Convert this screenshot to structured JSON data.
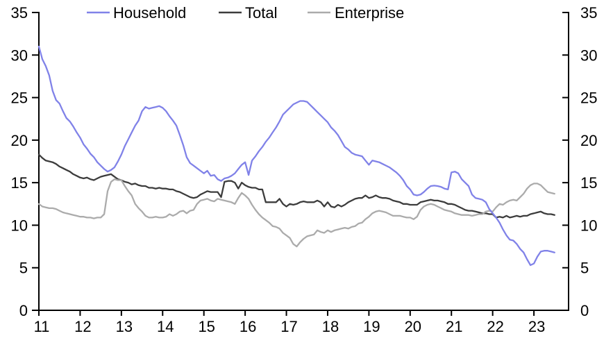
{
  "figure": {
    "background": "#FFFFFF",
    "axis_color": "#000000",
    "text_color": "#000000"
  },
  "chart_data": {
    "type": "line",
    "title": "",
    "xlabel": "",
    "ylabel": "",
    "grid": false,
    "legend_position": "top",
    "x_frequency": "monthly",
    "x_start_year_label": "11",
    "x_end_fraction": 23.5,
    "x_tick_labels": [
      "11",
      "12",
      "13",
      "14",
      "15",
      "16",
      "17",
      "18",
      "19",
      "20",
      "21",
      "22",
      "23"
    ],
    "x_axis_range": [
      11,
      23.84
    ],
    "y_tick_labels": [
      "0",
      "5",
      "10",
      "15",
      "20",
      "25",
      "30",
      "35"
    ],
    "y_ticks": [
      0,
      5,
      10,
      15,
      20,
      25,
      30,
      35
    ],
    "ylim": [
      0,
      35
    ],
    "dual_y_axis": true,
    "series": [
      {
        "name": "Household",
        "color": "#8082E8",
        "values": [
          31.0,
          29.5,
          28.7,
          27.6,
          25.8,
          24.7,
          24.3,
          23.4,
          22.6,
          22.2,
          21.6,
          20.9,
          20.3,
          19.5,
          19.0,
          18.4,
          18.0,
          17.4,
          17.0,
          16.6,
          16.3,
          16.5,
          16.8,
          17.5,
          18.3,
          19.3,
          20.1,
          20.9,
          21.7,
          22.3,
          23.4,
          23.9,
          23.7,
          23.8,
          23.9,
          24.0,
          23.8,
          23.4,
          22.8,
          22.3,
          21.7,
          20.6,
          19.4,
          18.0,
          17.3,
          17.0,
          16.7,
          16.4,
          16.1,
          16.4,
          15.8,
          15.9,
          15.4,
          15.2,
          15.5,
          15.6,
          15.8,
          16.1,
          16.6,
          17.1,
          17.4,
          15.9,
          17.6,
          18.1,
          18.7,
          19.2,
          19.8,
          20.3,
          20.9,
          21.5,
          22.2,
          23.0,
          23.4,
          23.8,
          24.2,
          24.4,
          24.6,
          24.6,
          24.5,
          24.1,
          23.7,
          23.3,
          22.9,
          22.5,
          22.1,
          21.5,
          21.1,
          20.6,
          19.9,
          19.2,
          18.9,
          18.5,
          18.3,
          18.2,
          18.1,
          17.6,
          17.1,
          17.6,
          17.5,
          17.4,
          17.2,
          17.0,
          16.8,
          16.5,
          16.2,
          15.8,
          15.3,
          14.6,
          14.2,
          13.6,
          13.5,
          13.6,
          13.9,
          14.3,
          14.6,
          14.65,
          14.6,
          14.5,
          14.3,
          14.2,
          16.2,
          16.3,
          16.1,
          15.4,
          15.0,
          14.6,
          13.6,
          13.2,
          13.1,
          13.0,
          12.7,
          11.9,
          11.4,
          10.9,
          10.3,
          9.5,
          8.8,
          8.3,
          8.2,
          7.8,
          7.2,
          6.8,
          6.0,
          5.3,
          5.5,
          6.3,
          6.9,
          7.0,
          7.0,
          6.9,
          6.8
        ]
      },
      {
        "name": "Total",
        "color": "#3C3C3C",
        "values": [
          18.3,
          17.9,
          17.6,
          17.5,
          17.4,
          17.2,
          16.9,
          16.7,
          16.5,
          16.3,
          16.0,
          15.8,
          15.6,
          15.5,
          15.6,
          15.4,
          15.3,
          15.5,
          15.7,
          15.8,
          15.9,
          16.0,
          15.7,
          15.4,
          15.3,
          15.1,
          15.0,
          14.8,
          14.9,
          14.7,
          14.6,
          14.6,
          14.4,
          14.4,
          14.3,
          14.4,
          14.3,
          14.3,
          14.2,
          14.2,
          14.0,
          13.9,
          13.7,
          13.5,
          13.3,
          13.2,
          13.3,
          13.6,
          13.8,
          14.0,
          13.9,
          13.9,
          13.9,
          13.3,
          15.1,
          15.2,
          15.2,
          15.0,
          14.3,
          15.0,
          14.7,
          14.5,
          14.4,
          14.4,
          14.2,
          14.2,
          12.7,
          12.7,
          12.7,
          12.7,
          13.1,
          12.5,
          12.2,
          12.5,
          12.4,
          12.5,
          12.7,
          12.8,
          12.7,
          12.7,
          12.7,
          12.9,
          12.7,
          12.2,
          12.7,
          12.2,
          12.1,
          12.4,
          12.2,
          12.4,
          12.7,
          12.9,
          13.1,
          13.2,
          13.2,
          13.5,
          13.2,
          13.3,
          13.5,
          13.3,
          13.2,
          13.2,
          13.1,
          12.9,
          12.8,
          12.7,
          12.5,
          12.5,
          12.4,
          12.4,
          12.4,
          12.7,
          12.8,
          12.9,
          13.0,
          12.9,
          12.9,
          12.8,
          12.7,
          12.5,
          12.5,
          12.4,
          12.2,
          12.0,
          11.8,
          11.7,
          11.7,
          11.6,
          11.5,
          11.4,
          11.4,
          11.3,
          11.3,
          10.9,
          11.0,
          10.9,
          11.1,
          10.9,
          11.0,
          11.1,
          11.0,
          11.1,
          11.1,
          11.3,
          11.4,
          11.5,
          11.6,
          11.4,
          11.3,
          11.3,
          11.2
        ]
      },
      {
        "name": "Enterprise",
        "color": "#ABABAB",
        "values": [
          12.5,
          12.2,
          12.1,
          12.0,
          12.0,
          11.9,
          11.7,
          11.5,
          11.4,
          11.3,
          11.2,
          11.1,
          11.0,
          11.0,
          10.9,
          10.9,
          10.8,
          10.9,
          10.9,
          11.3,
          14.0,
          15.1,
          15.4,
          15.3,
          15.3,
          14.6,
          14.0,
          13.5,
          12.5,
          12.0,
          11.6,
          11.1,
          10.9,
          10.9,
          11.0,
          10.9,
          10.9,
          11.0,
          11.3,
          11.1,
          11.3,
          11.6,
          11.7,
          11.4,
          11.7,
          11.8,
          12.5,
          12.9,
          13.0,
          13.1,
          12.9,
          12.8,
          13.1,
          13.0,
          12.9,
          12.8,
          12.7,
          12.5,
          13.2,
          13.8,
          13.5,
          13.1,
          12.4,
          11.8,
          11.3,
          10.9,
          10.6,
          10.3,
          9.9,
          9.8,
          9.6,
          9.1,
          8.8,
          8.5,
          7.8,
          7.5,
          8.0,
          8.4,
          8.7,
          8.8,
          8.9,
          9.4,
          9.2,
          9.1,
          9.4,
          9.2,
          9.4,
          9.5,
          9.6,
          9.7,
          9.6,
          9.8,
          9.9,
          10.2,
          10.3,
          10.7,
          11.0,
          11.4,
          11.6,
          11.7,
          11.6,
          11.5,
          11.3,
          11.1,
          11.1,
          11.1,
          11.0,
          10.9,
          10.9,
          10.7,
          11.0,
          11.8,
          12.2,
          12.4,
          12.5,
          12.4,
          12.2,
          12.0,
          11.8,
          11.7,
          11.6,
          11.4,
          11.3,
          11.2,
          11.2,
          11.2,
          11.1,
          11.2,
          11.3,
          11.3,
          11.6,
          11.7,
          11.6,
          12.1,
          12.5,
          12.4,
          12.7,
          12.9,
          13.0,
          12.9,
          13.3,
          13.7,
          14.3,
          14.7,
          14.9,
          14.9,
          14.7,
          14.3,
          13.9,
          13.8,
          13.7
        ]
      }
    ]
  }
}
